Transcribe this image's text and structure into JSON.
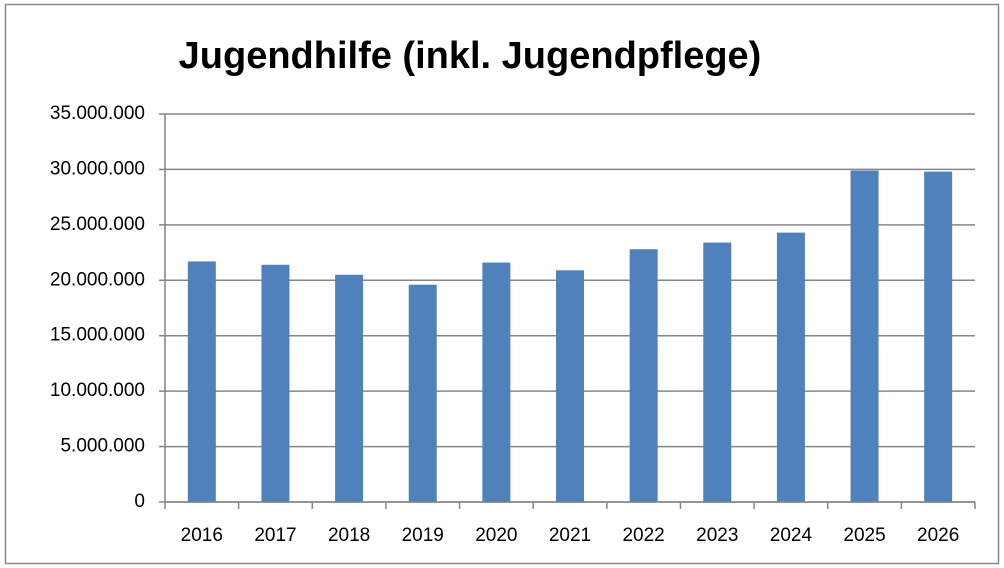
{
  "chart_data": {
    "type": "bar",
    "title": "Jugendhilfe (inkl. Jugendpflege)",
    "categories": [
      "2016",
      "2017",
      "2018",
      "2019",
      "2020",
      "2021",
      "2022",
      "2023",
      "2024",
      "2025",
      "2026"
    ],
    "values": [
      21700000,
      21400000,
      20500000,
      19600000,
      21600000,
      20900000,
      22800000,
      23400000,
      24300000,
      29900000,
      29800000
    ],
    "color": "#4f81bd",
    "ylim": [
      0,
      35000000
    ],
    "yticks": [
      0,
      {
        "value": 5000000,
        "label": "5.000.000"
      },
      {
        "value": 10000000,
        "label": "10.000.000"
      },
      {
        "value": 15000000,
        "label": "15.000.000"
      },
      {
        "value": 20000000,
        "label": "20.000.000"
      },
      {
        "value": 25000000,
        "label": "25.000.000"
      },
      {
        "value": 30000000,
        "label": "30.000.000"
      },
      {
        "value": 35000000,
        "label": "35.000.000"
      }
    ],
    "grid": true
  }
}
